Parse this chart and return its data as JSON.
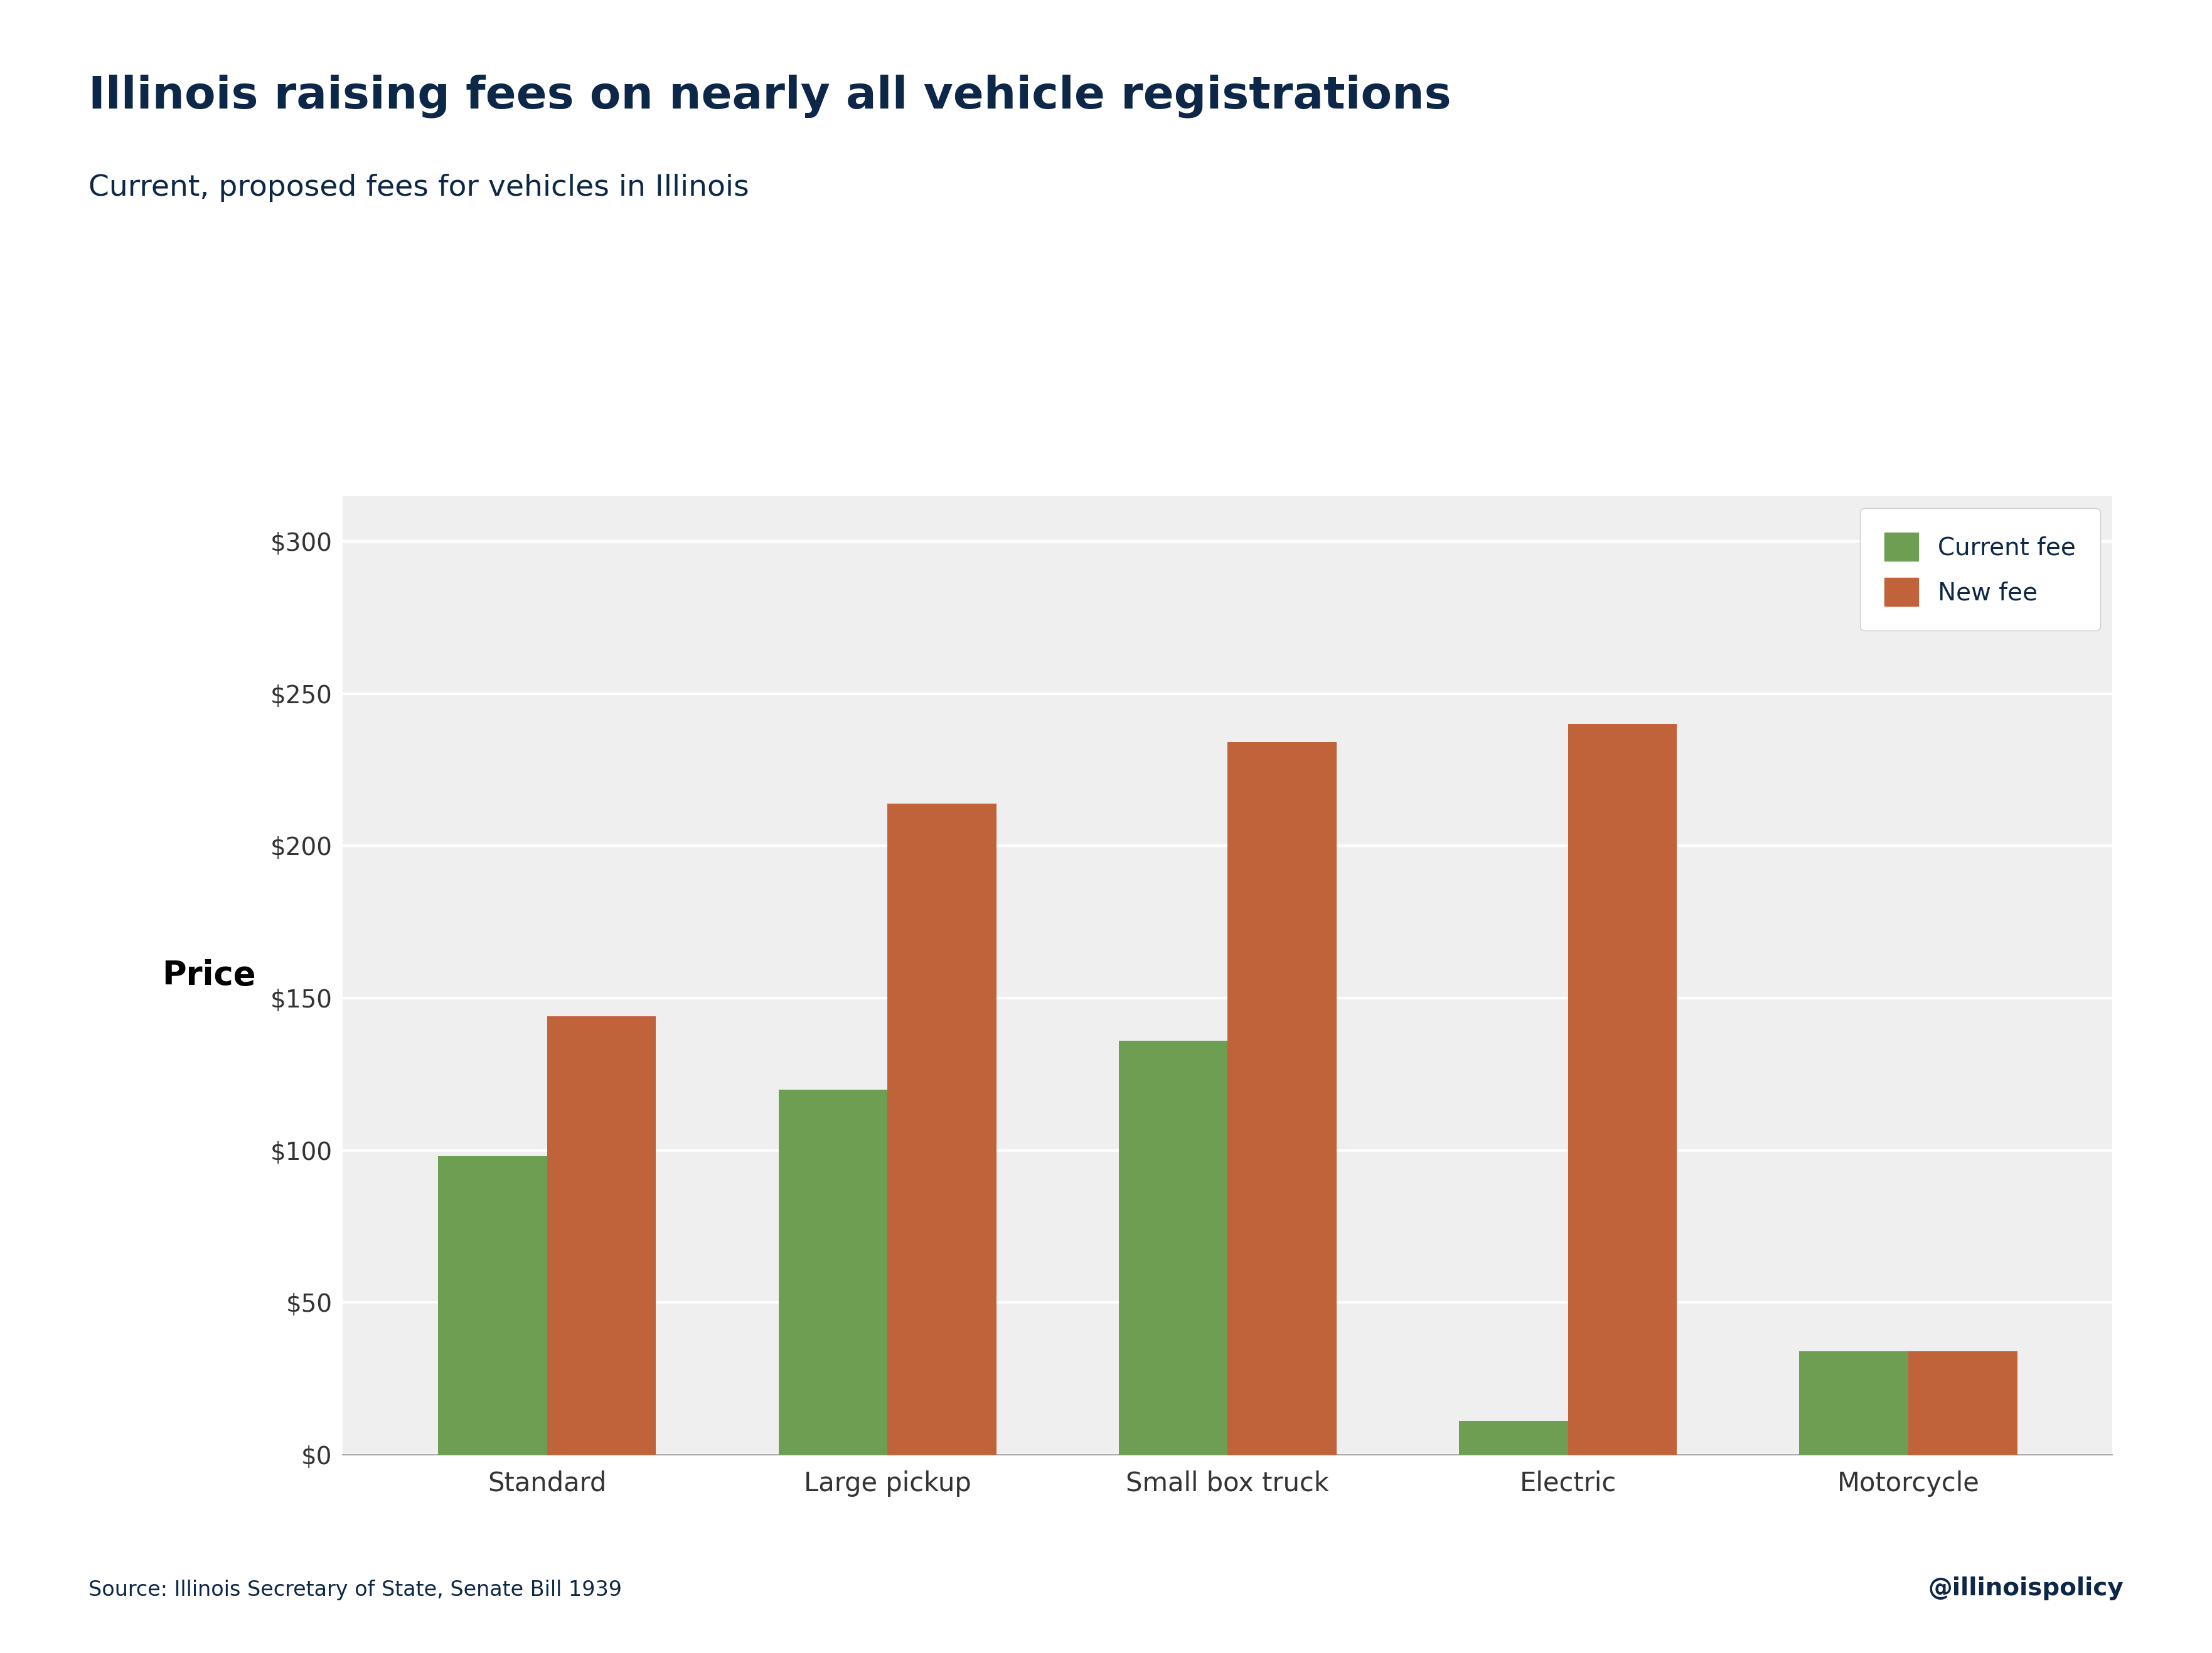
{
  "title": "Illinois raising fees on nearly all vehicle registrations",
  "subtitle": "Current, proposed fees for vehicles in Illinois",
  "source": "Source: Illinois Secretary of State, Senate Bill 1939",
  "watermark": "@illinoispolicy",
  "categories": [
    "Standard",
    "Large pickup",
    "Small box truck",
    "Electric",
    "Motorcycle"
  ],
  "current_fees": [
    98,
    120,
    136,
    11,
    34
  ],
  "new_fees": [
    144,
    214,
    234,
    240,
    34
  ],
  "current_color": "#6e9e52",
  "new_color": "#c0623a",
  "ylabel": "Price",
  "yticks": [
    0,
    50,
    100,
    150,
    200,
    250,
    300
  ],
  "ytick_labels": [
    "$0",
    "$50",
    "$100",
    "$150",
    "$200",
    "$250",
    "$300"
  ],
  "ylim": [
    0,
    315
  ],
  "legend_labels": [
    "Current fee",
    "New fee"
  ],
  "bg_color": "#efefef",
  "title_color": "#0d2748",
  "subtitle_color": "#0d2748",
  "source_color": "#0d2748",
  "watermark_color": "#0d2748",
  "ylabel_color": "#000000",
  "xtick_color": "#333333",
  "ytick_color": "#333333",
  "title_fontsize": 52,
  "subtitle_fontsize": 34,
  "source_fontsize": 24,
  "watermark_fontsize": 28,
  "ylabel_fontsize": 38,
  "xtick_fontsize": 30,
  "ytick_fontsize": 28,
  "legend_fontsize": 28,
  "bar_width": 0.32
}
